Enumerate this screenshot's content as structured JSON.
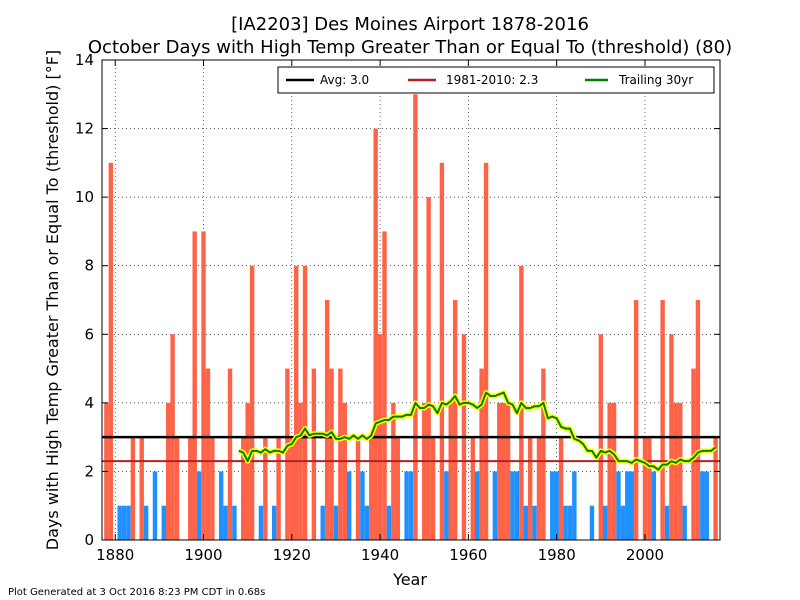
{
  "chart_data": {
    "type": "bar",
    "title": "[IA2203] Des Moines Airport 1878-2016",
    "subtitle": "October Days with High Temp Greater Than or Equal To (threshold) (80)",
    "xlabel": "Year",
    "ylabel": "Days with High Temp Greater Than or Equal To (threshold) [°F]",
    "xlim": [
      1877,
      2017
    ],
    "ylim": [
      0,
      14
    ],
    "xticks": [
      1880,
      1900,
      1920,
      1940,
      1960,
      1980,
      2000
    ],
    "yticks": [
      0,
      2,
      4,
      6,
      8,
      10,
      12,
      14
    ],
    "grid": true,
    "legend_position": "top",
    "footer": "Plot Generated at 3 Oct 2016 8:23 PM CDT in 0.68s",
    "colors": {
      "above_avg": "#ff6347",
      "below_avg": "#1e90ff",
      "avg_line": "#000000",
      "normal_line": "#b22222",
      "trailing_line": "#008000",
      "trailing_halo": "#ffff00"
    },
    "average": {
      "label": "Avg: 3.0",
      "value": 3.0
    },
    "normal_1981_2010": {
      "label": "1981-2010: 2.3",
      "value": 2.3
    },
    "series": [
      {
        "name": "Days",
        "x": [
          1878,
          1879,
          1880,
          1881,
          1882,
          1883,
          1884,
          1885,
          1886,
          1887,
          1888,
          1889,
          1890,
          1891,
          1892,
          1893,
          1894,
          1895,
          1896,
          1897,
          1898,
          1899,
          1900,
          1901,
          1902,
          1903,
          1904,
          1905,
          1906,
          1907,
          1908,
          1909,
          1910,
          1911,
          1912,
          1913,
          1914,
          1915,
          1916,
          1917,
          1918,
          1919,
          1920,
          1921,
          1922,
          1923,
          1924,
          1925,
          1926,
          1927,
          1928,
          1929,
          1930,
          1931,
          1932,
          1933,
          1934,
          1935,
          1936,
          1937,
          1938,
          1939,
          1940,
          1941,
          1942,
          1943,
          1944,
          1945,
          1946,
          1947,
          1948,
          1949,
          1950,
          1951,
          1952,
          1953,
          1954,
          1955,
          1956,
          1957,
          1958,
          1959,
          1960,
          1961,
          1962,
          1963,
          1964,
          1965,
          1966,
          1967,
          1968,
          1969,
          1970,
          1971,
          1972,
          1973,
          1974,
          1975,
          1976,
          1977,
          1978,
          1979,
          1980,
          1981,
          1982,
          1983,
          1984,
          1985,
          1986,
          1987,
          1988,
          1989,
          1990,
          1991,
          1992,
          1993,
          1994,
          1995,
          1996,
          1997,
          1998,
          1999,
          2000,
          2001,
          2002,
          2003,
          2004,
          2005,
          2006,
          2007,
          2008,
          2009,
          2010,
          2011,
          2012,
          2013,
          2014,
          2015,
          2016
        ],
        "values": [
          4,
          11,
          0,
          1,
          1,
          1,
          3,
          0,
          3,
          1,
          0,
          2,
          0,
          1,
          4,
          6,
          3,
          0,
          0,
          3,
          9,
          2,
          9,
          5,
          3,
          0,
          2,
          1,
          5,
          1,
          0,
          3,
          4,
          8,
          0,
          1,
          3,
          0,
          1,
          3,
          0,
          5,
          3,
          8,
          4,
          8,
          0,
          5,
          0,
          1,
          7,
          5,
          1,
          5,
          4,
          2,
          0,
          3,
          2,
          1,
          3,
          12,
          6,
          9,
          1,
          4,
          3,
          0,
          2,
          2,
          13,
          0,
          4,
          10,
          3,
          0,
          11,
          2,
          4,
          7,
          0,
          6,
          0,
          3,
          2,
          5,
          11,
          0,
          2,
          4,
          4,
          4,
          2,
          2,
          8,
          1,
          3,
          1,
          3,
          5,
          0,
          2,
          2,
          3,
          1,
          1,
          2,
          0,
          0,
          0,
          1,
          0,
          6,
          1,
          4,
          4,
          2,
          1,
          2,
          2,
          7,
          0,
          3,
          3,
          2,
          0,
          7,
          1,
          6,
          4,
          4,
          1,
          0,
          5,
          7,
          2,
          2,
          0,
          3
        ]
      },
      {
        "name": "Trailing 30yr",
        "x": [
          1908,
          1909,
          1910,
          1911,
          1912,
          1913,
          1914,
          1915,
          1916,
          1917,
          1918,
          1919,
          1920,
          1921,
          1922,
          1923,
          1924,
          1925,
          1926,
          1927,
          1928,
          1929,
          1930,
          1931,
          1932,
          1933,
          1934,
          1935,
          1936,
          1937,
          1938,
          1939,
          1940,
          1941,
          1942,
          1943,
          1944,
          1945,
          1946,
          1947,
          1948,
          1949,
          1950,
          1951,
          1952,
          1953,
          1954,
          1955,
          1956,
          1957,
          1958,
          1959,
          1960,
          1961,
          1962,
          1963,
          1964,
          1965,
          1966,
          1967,
          1968,
          1969,
          1970,
          1971,
          1972,
          1973,
          1974,
          1975,
          1976,
          1977,
          1978,
          1979,
          1980,
          1981,
          1982,
          1983,
          1984,
          1985,
          1986,
          1987,
          1988,
          1989,
          1990,
          1991,
          1992,
          1993,
          1994,
          1995,
          1996,
          1997,
          1998,
          1999,
          2000,
          2001,
          2002,
          2003,
          2004,
          2005,
          2006,
          2007,
          2008,
          2009,
          2010,
          2011,
          2012,
          2013,
          2014,
          2015,
          2016
        ],
        "values": [
          2.6,
          2.55,
          2.3,
          2.6,
          2.6,
          2.55,
          2.65,
          2.55,
          2.6,
          2.6,
          2.55,
          2.75,
          2.8,
          3.0,
          3.05,
          3.25,
          3.05,
          3.1,
          3.1,
          3.1,
          3.05,
          3.15,
          2.95,
          2.95,
          3.0,
          2.95,
          3.05,
          2.95,
          3.05,
          2.95,
          3.05,
          3.4,
          3.45,
          3.5,
          3.5,
          3.6,
          3.6,
          3.6,
          3.65,
          3.65,
          4.0,
          3.85,
          3.85,
          3.95,
          3.9,
          3.7,
          4.0,
          3.95,
          4.05,
          4.2,
          3.95,
          4.0,
          4.0,
          3.95,
          3.85,
          3.95,
          4.3,
          4.2,
          4.2,
          4.25,
          4.3,
          4.0,
          3.95,
          3.7,
          4.0,
          3.85,
          3.85,
          3.9,
          3.9,
          4.0,
          3.55,
          3.6,
          3.55,
          3.3,
          3.25,
          3.25,
          2.95,
          2.9,
          2.8,
          2.6,
          2.6,
          2.4,
          2.6,
          2.55,
          2.6,
          2.5,
          2.3,
          2.3,
          2.3,
          2.25,
          2.35,
          2.3,
          2.25,
          2.15,
          2.15,
          2.05,
          2.2,
          2.2,
          2.3,
          2.25,
          2.35,
          2.3,
          2.3,
          2.4,
          2.55,
          2.6,
          2.6,
          2.6,
          2.7
        ]
      }
    ]
  },
  "legend": {
    "avg_label": "Avg: 3.0",
    "normal_label": "1981-2010: 2.3",
    "trailing_label": "Trailing 30yr"
  }
}
